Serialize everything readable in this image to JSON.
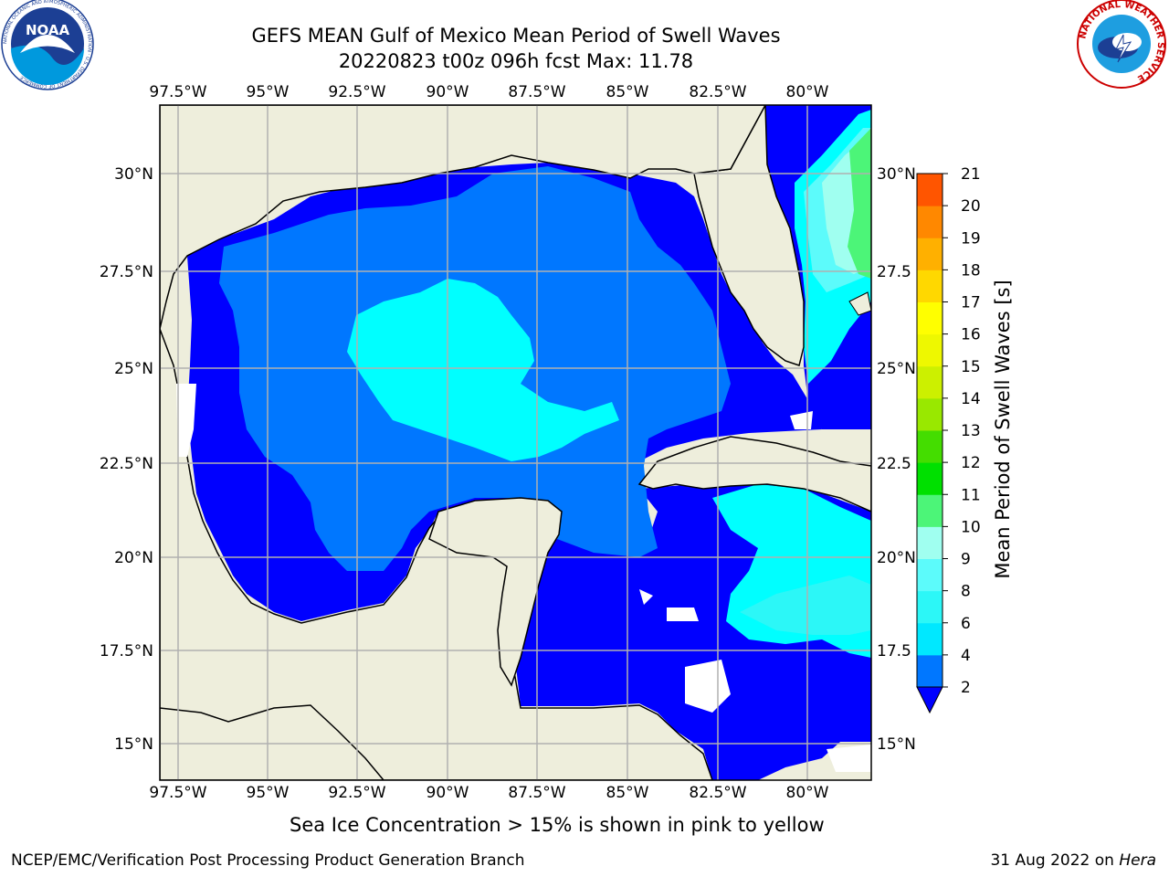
{
  "header": {
    "title_line1": "GEFS MEAN Gulf of Mexico Mean Period of Swell Waves",
    "title_line2": "20220823 t00z 096h fcst   Max: 11.78"
  },
  "logos": {
    "left": "NOAA",
    "left_ring": "NATIONAL OCEANIC AND ATMOSPHERIC ADMINISTRATION · U.S. DEPARTMENT OF COMMERCE",
    "right_ring": "NATIONAL WEATHER SERVICE"
  },
  "map": {
    "lon_ticks": [
      "97.5°W",
      "95°W",
      "92.5°W",
      "90°W",
      "87.5°W",
      "85°W",
      "82.5°W",
      "80°W"
    ],
    "lat_ticks": [
      "30°N",
      "27.5°N",
      "25°N",
      "22.5°N",
      "20°N",
      "17.5°N",
      "15°N"
    ],
    "lat_ticks_right": [
      "30°N",
      "27.5",
      "25°N",
      "22.5",
      "20°N",
      "17.5",
      "15°N"
    ],
    "land_color": "#eeeedc",
    "grid_color": "#b0b0b0"
  },
  "colorbar": {
    "label": "Mean Period of Swell Waves [s]",
    "ticks": [
      "2",
      "4",
      "6",
      "8",
      "9",
      "10",
      "11",
      "12",
      "13",
      "14",
      "15",
      "16",
      "17",
      "18",
      "19",
      "20",
      "21"
    ],
    "colors": [
      "#0077ff",
      "#00e8ff",
      "#2cf7f7",
      "#5cfbfb",
      "#a0fff0",
      "#4cf578",
      "#00e000",
      "#44dd00",
      "#99e800",
      "#ccf000",
      "#eef800",
      "#ffff00",
      "#ffd800",
      "#ffb000",
      "#ff8800",
      "#ff5500",
      "#ff2200",
      "#ff0000"
    ],
    "under_color": "#0000ff"
  },
  "caption": "Sea Ice Concentration > 15% is shown in pink to yellow",
  "footer": {
    "left": "NCEP/EMC/Verification Post Processing Product Generation Branch",
    "right_date": "31 Aug 2022 on",
    "right_host": "Hera"
  }
}
